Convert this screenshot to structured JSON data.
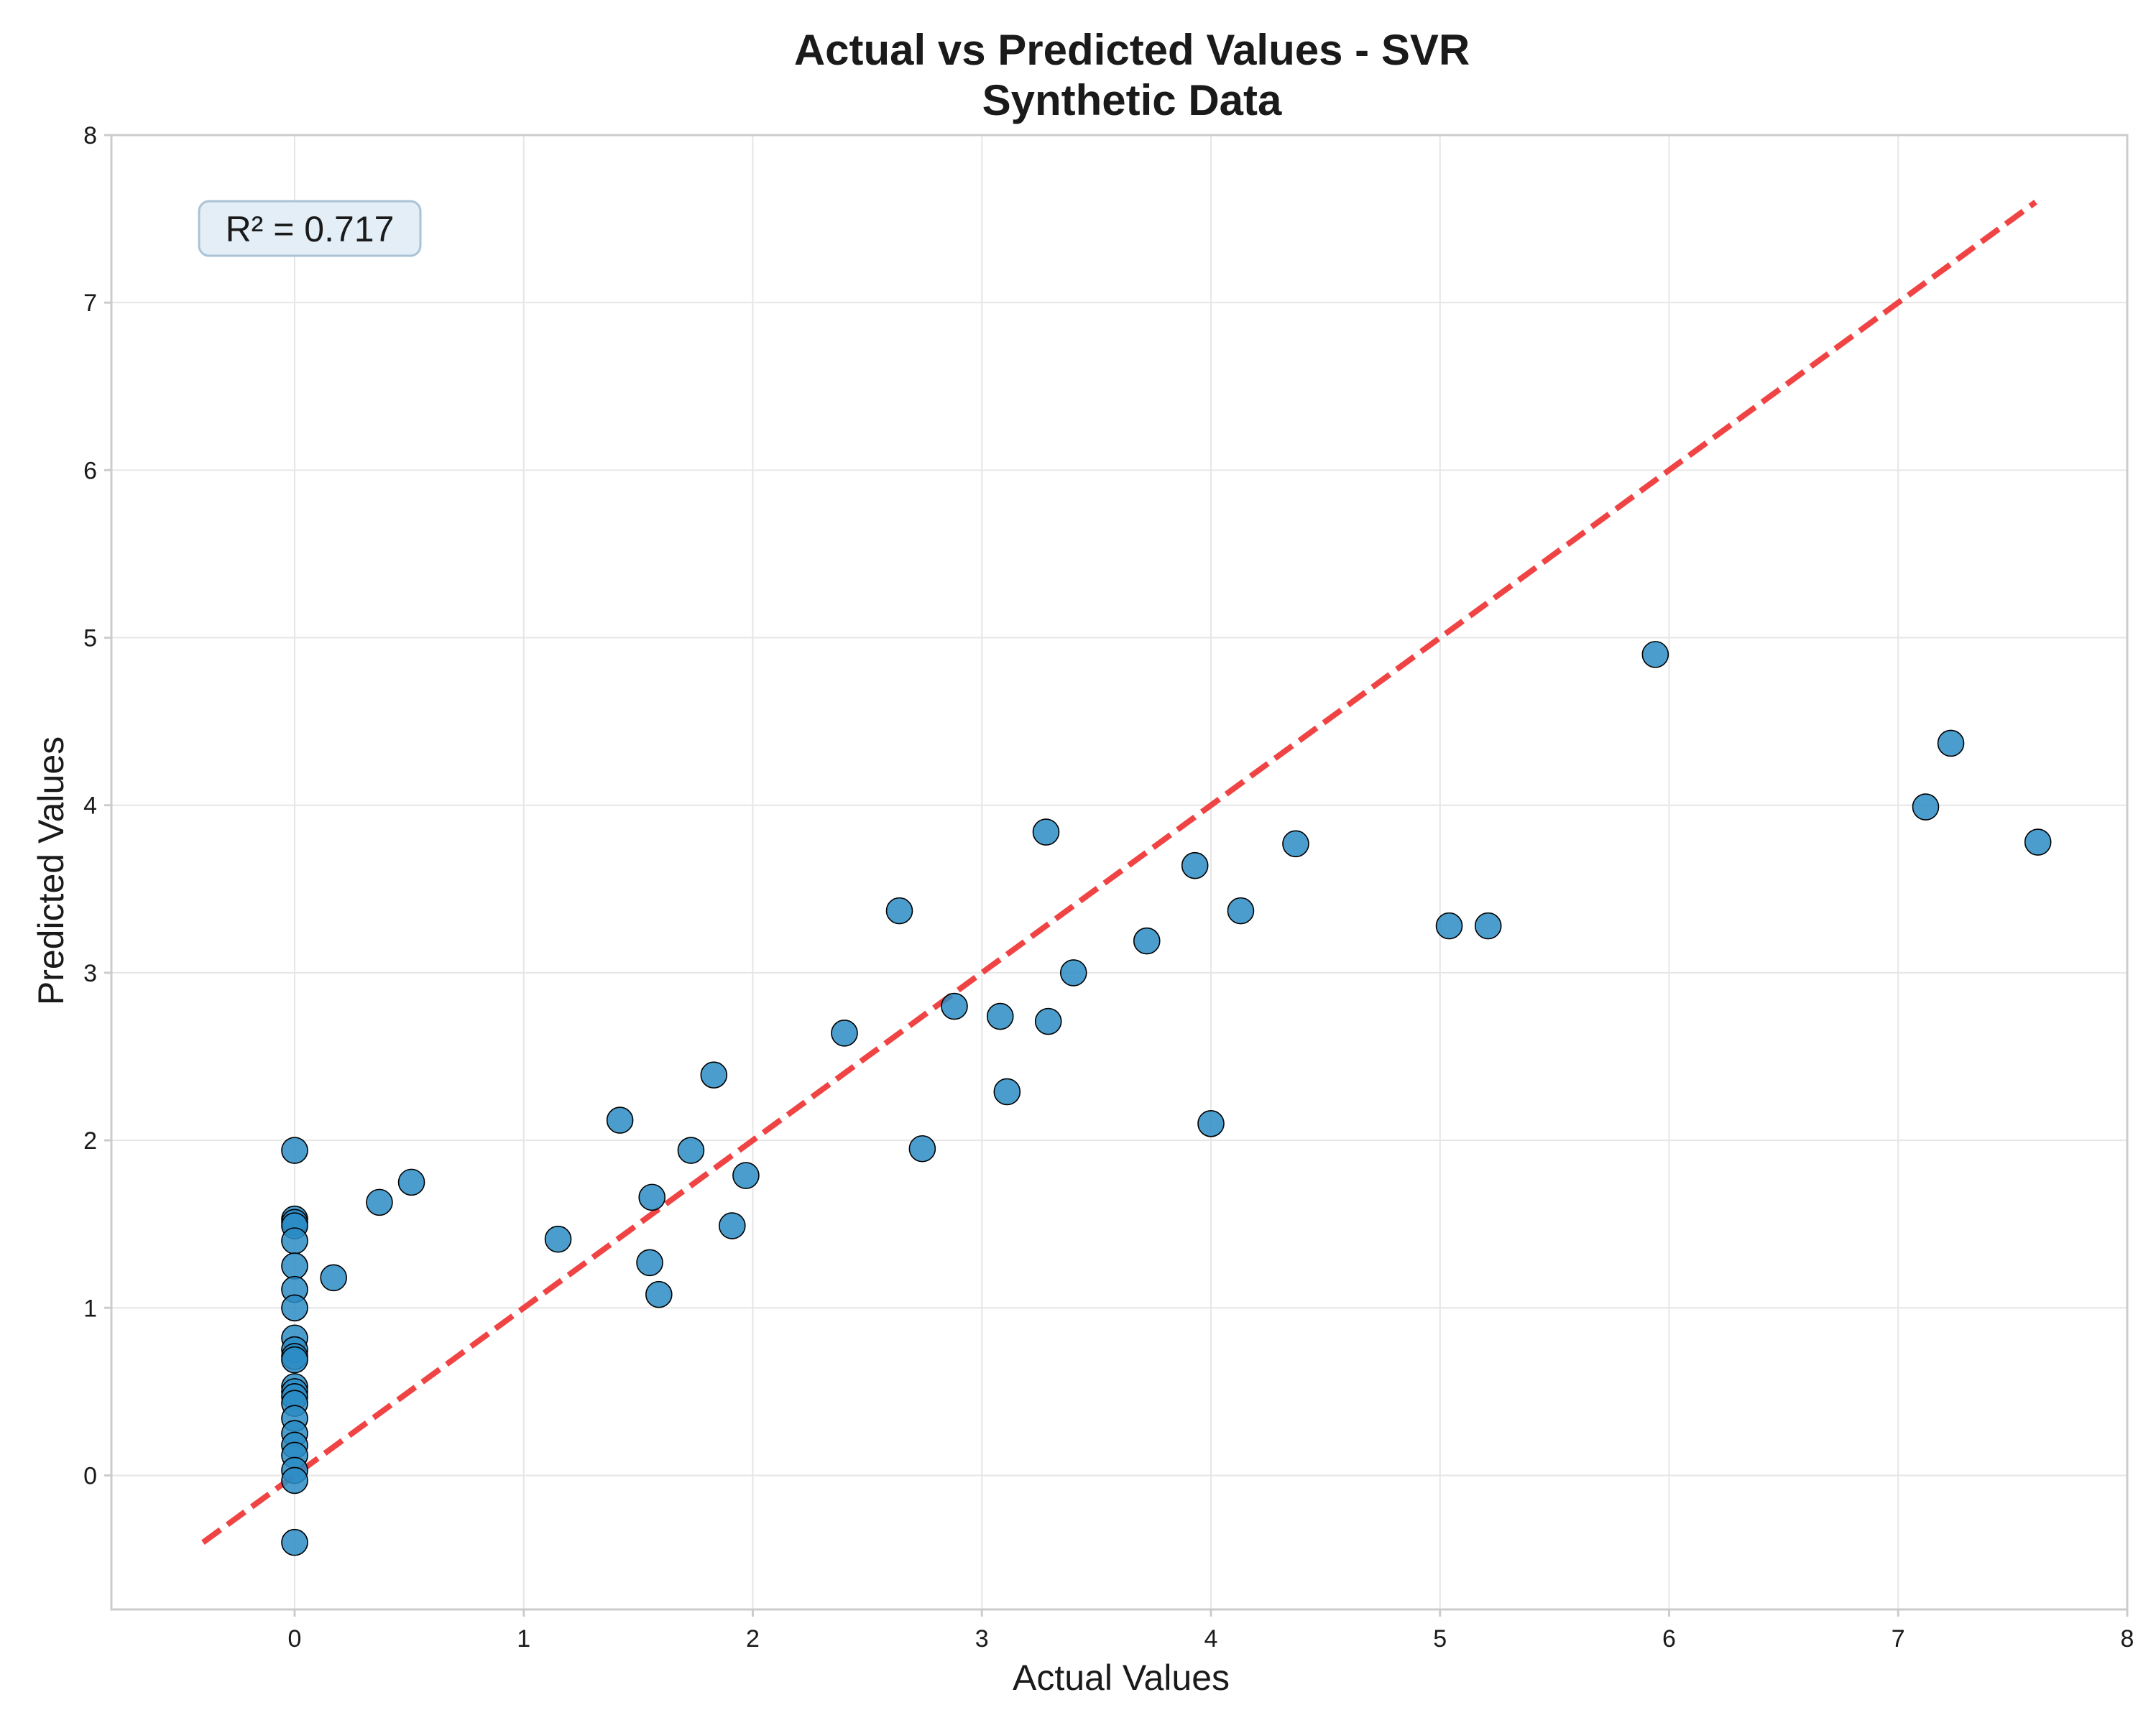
{
  "chart_data": {
    "type": "scatter",
    "title": "Actual vs Predicted Values - SVR",
    "subtitle": "Synthetic Data",
    "xlabel": "Actual Values",
    "ylabel": "Predicted Values",
    "xlim": [
      -0.8,
      8.0
    ],
    "ylim": [
      -0.8,
      8.0
    ],
    "xticks": [
      0,
      1,
      2,
      3,
      4,
      5,
      6,
      7,
      8
    ],
    "yticks": [
      0,
      1,
      2,
      3,
      4,
      5,
      6,
      7,
      8
    ],
    "grid": true,
    "annotation": "R² = 0.717",
    "colors": {
      "points": "#2b8cc4",
      "point_edge": "#000000",
      "reference_line": "#f03b3b",
      "grid": "#e6e6e6",
      "frame": "#cccccc",
      "annotation_bg": "#e3eef6",
      "annotation_border": "#aac3d6"
    },
    "reference_line": {
      "from": [
        -0.4,
        -0.4
      ],
      "to": [
        7.6,
        7.6
      ],
      "style": "dashed"
    },
    "points": [
      {
        "x": 0,
        "y": 1.94
      },
      {
        "x": 0,
        "y": 1.53
      },
      {
        "x": 0,
        "y": 1.51
      },
      {
        "x": 0,
        "y": 1.49
      },
      {
        "x": 0,
        "y": 1.4
      },
      {
        "x": 0,
        "y": 1.25
      },
      {
        "x": 0,
        "y": 1.11
      },
      {
        "x": 0,
        "y": 1.0
      },
      {
        "x": 0,
        "y": 0.82
      },
      {
        "x": 0,
        "y": 0.75
      },
      {
        "x": 0,
        "y": 0.71
      },
      {
        "x": 0,
        "y": 0.69
      },
      {
        "x": 0,
        "y": 0.53
      },
      {
        "x": 0,
        "y": 0.5
      },
      {
        "x": 0,
        "y": 0.47
      },
      {
        "x": 0,
        "y": 0.43
      },
      {
        "x": 0,
        "y": 0.34
      },
      {
        "x": 0,
        "y": 0.25
      },
      {
        "x": 0,
        "y": 0.18
      },
      {
        "x": 0,
        "y": 0.12
      },
      {
        "x": 0,
        "y": 0.03
      },
      {
        "x": 0,
        "y": -0.03
      },
      {
        "x": 0,
        "y": -0.4
      },
      {
        "x": 0.17,
        "y": 1.18
      },
      {
        "x": 0.37,
        "y": 1.63
      },
      {
        "x": 0.51,
        "y": 1.75
      },
      {
        "x": 1.15,
        "y": 1.41
      },
      {
        "x": 1.42,
        "y": 2.12
      },
      {
        "x": 1.55,
        "y": 1.27
      },
      {
        "x": 1.56,
        "y": 1.66
      },
      {
        "x": 1.59,
        "y": 1.08
      },
      {
        "x": 1.73,
        "y": 1.94
      },
      {
        "x": 1.83,
        "y": 2.39
      },
      {
        "x": 1.91,
        "y": 1.49
      },
      {
        "x": 1.97,
        "y": 1.79
      },
      {
        "x": 2.4,
        "y": 2.64
      },
      {
        "x": 2.64,
        "y": 3.37
      },
      {
        "x": 2.74,
        "y": 1.95
      },
      {
        "x": 2.88,
        "y": 2.8
      },
      {
        "x": 3.08,
        "y": 2.74
      },
      {
        "x": 3.11,
        "y": 2.29
      },
      {
        "x": 3.28,
        "y": 3.84
      },
      {
        "x": 3.29,
        "y": 2.71
      },
      {
        "x": 3.4,
        "y": 3.0
      },
      {
        "x": 3.72,
        "y": 3.19
      },
      {
        "x": 3.93,
        "y": 3.64
      },
      {
        "x": 4.0,
        "y": 2.1
      },
      {
        "x": 4.13,
        "y": 3.37
      },
      {
        "x": 4.37,
        "y": 3.77
      },
      {
        "x": 5.04,
        "y": 3.28
      },
      {
        "x": 5.21,
        "y": 3.28
      },
      {
        "x": 5.94,
        "y": 4.9
      },
      {
        "x": 7.12,
        "y": 3.99
      },
      {
        "x": 7.23,
        "y": 4.37
      },
      {
        "x": 7.61,
        "y": 3.78
      }
    ]
  }
}
